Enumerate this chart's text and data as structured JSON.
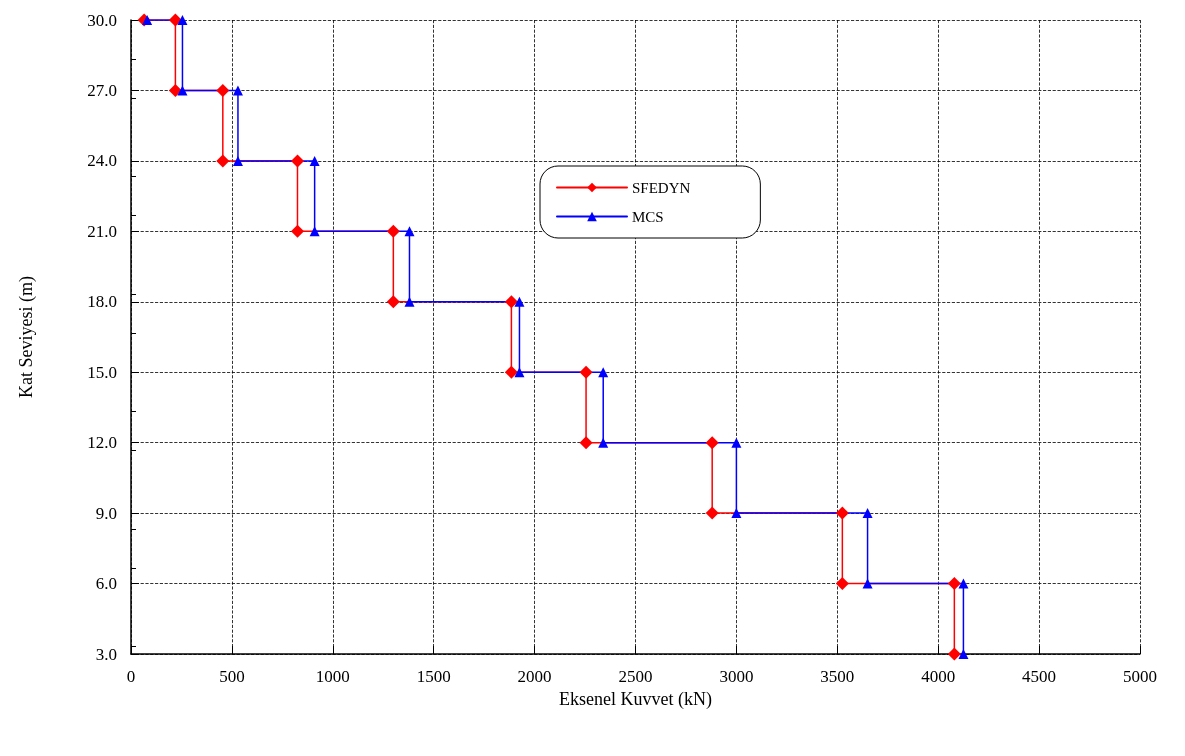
{
  "chart_data": {
    "type": "line",
    "xlabel": "Eksenel Kuvvet (kN)",
    "ylabel": "Kat Seviyesi (m)",
    "xlim": [
      0,
      5000
    ],
    "xticks": [
      0,
      500,
      1000,
      1500,
      2000,
      2500,
      3000,
      3500,
      4000,
      4500,
      5000
    ],
    "ylim": [
      3,
      30
    ],
    "yticks": [
      {
        "value": 3,
        "label": "3.0"
      },
      {
        "value": 6,
        "label": "6.0"
      },
      {
        "value": 9,
        "label": "9.0"
      },
      {
        "value": 12,
        "label": "12.0"
      },
      {
        "value": 15,
        "label": "15.0"
      },
      {
        "value": 18,
        "label": "18.0"
      },
      {
        "value": 21,
        "label": "21.0"
      },
      {
        "value": 24,
        "label": "24.0"
      },
      {
        "value": 27,
        "label": "27.0"
      },
      {
        "value": 30,
        "label": "30.0"
      }
    ],
    "grid": true,
    "legend": "top",
    "line_style": "solid",
    "series": [
      {
        "name": "SFEDYN",
        "color": "#ff0000",
        "marker": "diamond",
        "x": [
          65,
          220,
          220,
          455,
          455,
          825,
          825,
          1300,
          1300,
          1885,
          1885,
          2255,
          2255,
          2880,
          2880,
          3525,
          3525,
          4080,
          4080
        ],
        "values": [
          30,
          30,
          27,
          27,
          24,
          24,
          21,
          21,
          18,
          18,
          15,
          15,
          12,
          12,
          9,
          9,
          6,
          6,
          3
        ]
      },
      {
        "name": "MCS",
        "color": "#0000ff",
        "marker": "triangle",
        "x": [
          80,
          255,
          255,
          530,
          530,
          910,
          910,
          1380,
          1380,
          1925,
          1925,
          2340,
          2340,
          3000,
          3000,
          3650,
          3650,
          4125,
          4125
        ],
        "values": [
          30,
          30,
          27,
          27,
          24,
          24,
          21,
          21,
          18,
          18,
          15,
          15,
          12,
          12,
          9,
          9,
          6,
          6,
          3
        ]
      }
    ]
  }
}
